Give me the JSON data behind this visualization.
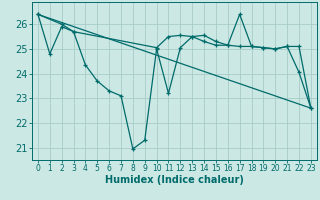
{
  "xlabel": "Humidex (Indice chaleur)",
  "background_color": "#cce8e4",
  "line_color": "#006b6b",
  "grid_color": "#b8d8d4",
  "xlim": [
    -0.5,
    23.5
  ],
  "ylim": [
    20.5,
    26.9
  ],
  "yticks": [
    21,
    22,
    23,
    24,
    25,
    26
  ],
  "xticks": [
    0,
    1,
    2,
    3,
    4,
    5,
    6,
    7,
    8,
    9,
    10,
    11,
    12,
    13,
    14,
    15,
    16,
    17,
    18,
    19,
    20,
    21,
    22,
    23
  ],
  "series1_x": [
    0,
    1,
    2,
    3,
    4,
    5,
    6,
    7,
    8,
    9,
    10,
    11,
    12,
    13,
    14,
    15,
    16,
    17,
    18,
    19,
    20,
    21,
    22,
    23
  ],
  "series1_y": [
    26.4,
    24.8,
    25.9,
    25.7,
    24.35,
    23.7,
    23.3,
    23.1,
    20.95,
    21.3,
    25.0,
    23.2,
    25.05,
    25.5,
    25.55,
    25.3,
    25.15,
    26.4,
    25.1,
    25.05,
    25.0,
    25.1,
    24.05,
    22.6
  ],
  "series2_x": [
    0,
    2,
    3,
    10,
    11,
    12,
    13,
    14,
    15,
    16,
    17,
    18,
    19,
    20,
    21,
    22,
    23
  ],
  "series2_y": [
    26.4,
    26.0,
    25.7,
    25.05,
    25.5,
    25.55,
    25.5,
    25.3,
    25.15,
    25.15,
    25.1,
    25.1,
    25.05,
    25.0,
    25.1,
    25.1,
    22.6
  ],
  "series3_x": [
    0,
    23
  ],
  "series3_y": [
    26.4,
    22.6
  ]
}
